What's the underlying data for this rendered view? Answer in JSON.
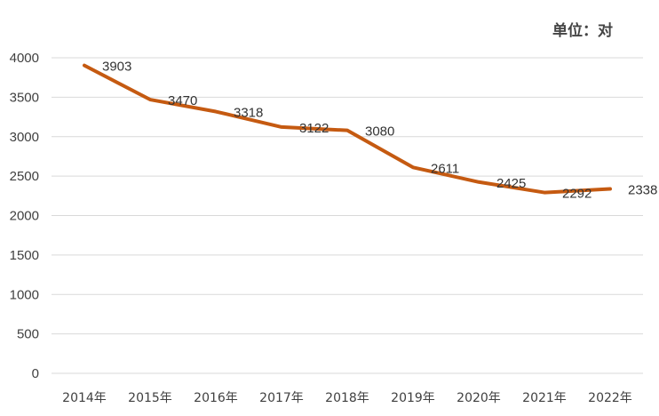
{
  "unit_label": "单位：对",
  "chart_data": {
    "type": "line",
    "categories": [
      "2014年",
      "2015年",
      "2016年",
      "2017年",
      "2018年",
      "2019年",
      "2020年",
      "2021年",
      "2022年"
    ],
    "series": [
      {
        "values": [
          3903,
          3470,
          3318,
          3122,
          3080,
          2611,
          2425,
          2292,
          2338
        ],
        "color": "#C55A11"
      }
    ],
    "data_labels": [
      "3903",
      "3470",
      "3318",
      "3122",
      "3080",
      "2611",
      "2425",
      "2292",
      "2338"
    ],
    "ylim": [
      0,
      4000
    ],
    "yticks": [
      0,
      500,
      1000,
      1500,
      2000,
      2500,
      3000,
      3500,
      4000
    ],
    "grid": true,
    "gridline_color": "#d9d9d9",
    "legend": "none",
    "title": "",
    "xlabel": "",
    "ylabel": ""
  }
}
